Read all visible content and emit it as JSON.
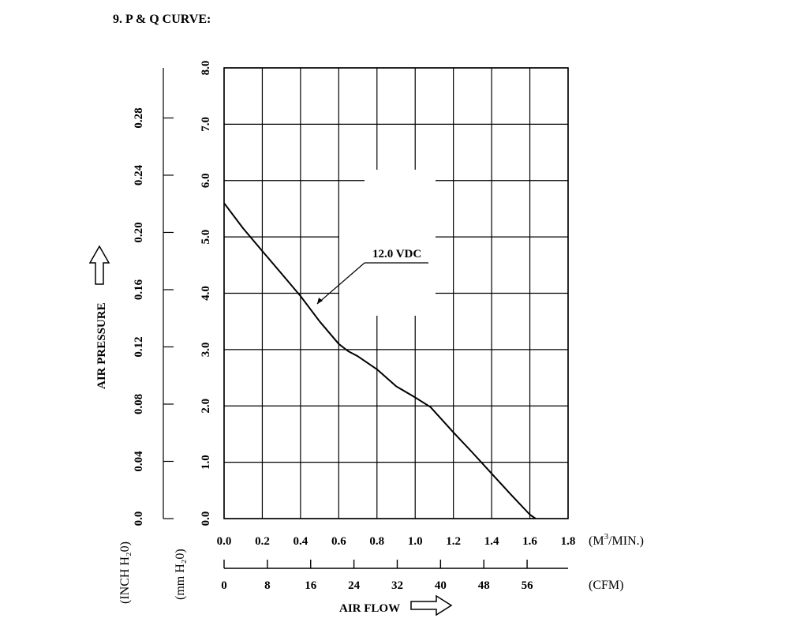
{
  "section_title": "9. P & Q CURVE:",
  "chart_data": {
    "type": "line",
    "title": "",
    "xlabel": "AIR FLOW",
    "ylabel": "AIR PRESSURE",
    "grid": true,
    "x_primary": {
      "unit": "(M³/MIN.)",
      "unit_prefix": "(M",
      "unit_sup": "3",
      "unit_suffix": "/MIN.)",
      "range": [
        0,
        1.8
      ],
      "ticks": [
        0.0,
        0.2,
        0.4,
        0.6,
        0.8,
        1.0,
        1.2,
        1.4,
        1.6,
        1.8
      ],
      "tick_labels": [
        "0.0",
        "0.2",
        "0.4",
        "0.6",
        "0.8",
        "1.0",
        "1.2",
        "1.4",
        "1.6",
        "1.8"
      ]
    },
    "x_secondary": {
      "unit": "(CFM)",
      "range": [
        0,
        63.57
      ],
      "ticks": [
        0,
        8,
        16,
        24,
        32,
        40,
        48,
        56
      ],
      "tick_labels": [
        "0",
        "8",
        "16",
        "24",
        "32",
        "40",
        "48",
        "56"
      ]
    },
    "y_primary": {
      "unit": "(mm H₂0)",
      "range": [
        0,
        8
      ],
      "ticks": [
        0,
        1,
        2,
        3,
        4,
        5,
        6,
        7,
        8
      ],
      "tick_labels": [
        "0.0",
        "1.0",
        "2.0",
        "3.0",
        "4.0",
        "5.0",
        "6.0",
        "7.0",
        "8.0"
      ]
    },
    "y_secondary": {
      "unit": "(INCH H₂0)",
      "range": [
        0,
        0.315
      ],
      "ticks": [
        0.0,
        0.04,
        0.08,
        0.12,
        0.16,
        0.2,
        0.24,
        0.28
      ],
      "tick_labels": [
        "0.0",
        "0.04",
        "0.08",
        "0.12",
        "0.16",
        "0.20",
        "0.24",
        "0.28"
      ]
    },
    "series": [
      {
        "name": "12.0 VDC",
        "x": [
          0.0,
          0.1,
          0.2,
          0.3,
          0.4,
          0.5,
          0.6,
          0.65,
          0.7,
          0.8,
          0.9,
          1.0,
          1.08,
          1.2,
          1.3,
          1.4,
          1.5,
          1.6,
          1.63
        ],
        "y": [
          5.6,
          5.15,
          4.75,
          4.35,
          3.95,
          3.5,
          3.1,
          2.97,
          2.88,
          2.65,
          2.35,
          2.15,
          1.98,
          1.53,
          1.17,
          0.8,
          0.43,
          0.07,
          0.0
        ]
      }
    ]
  }
}
